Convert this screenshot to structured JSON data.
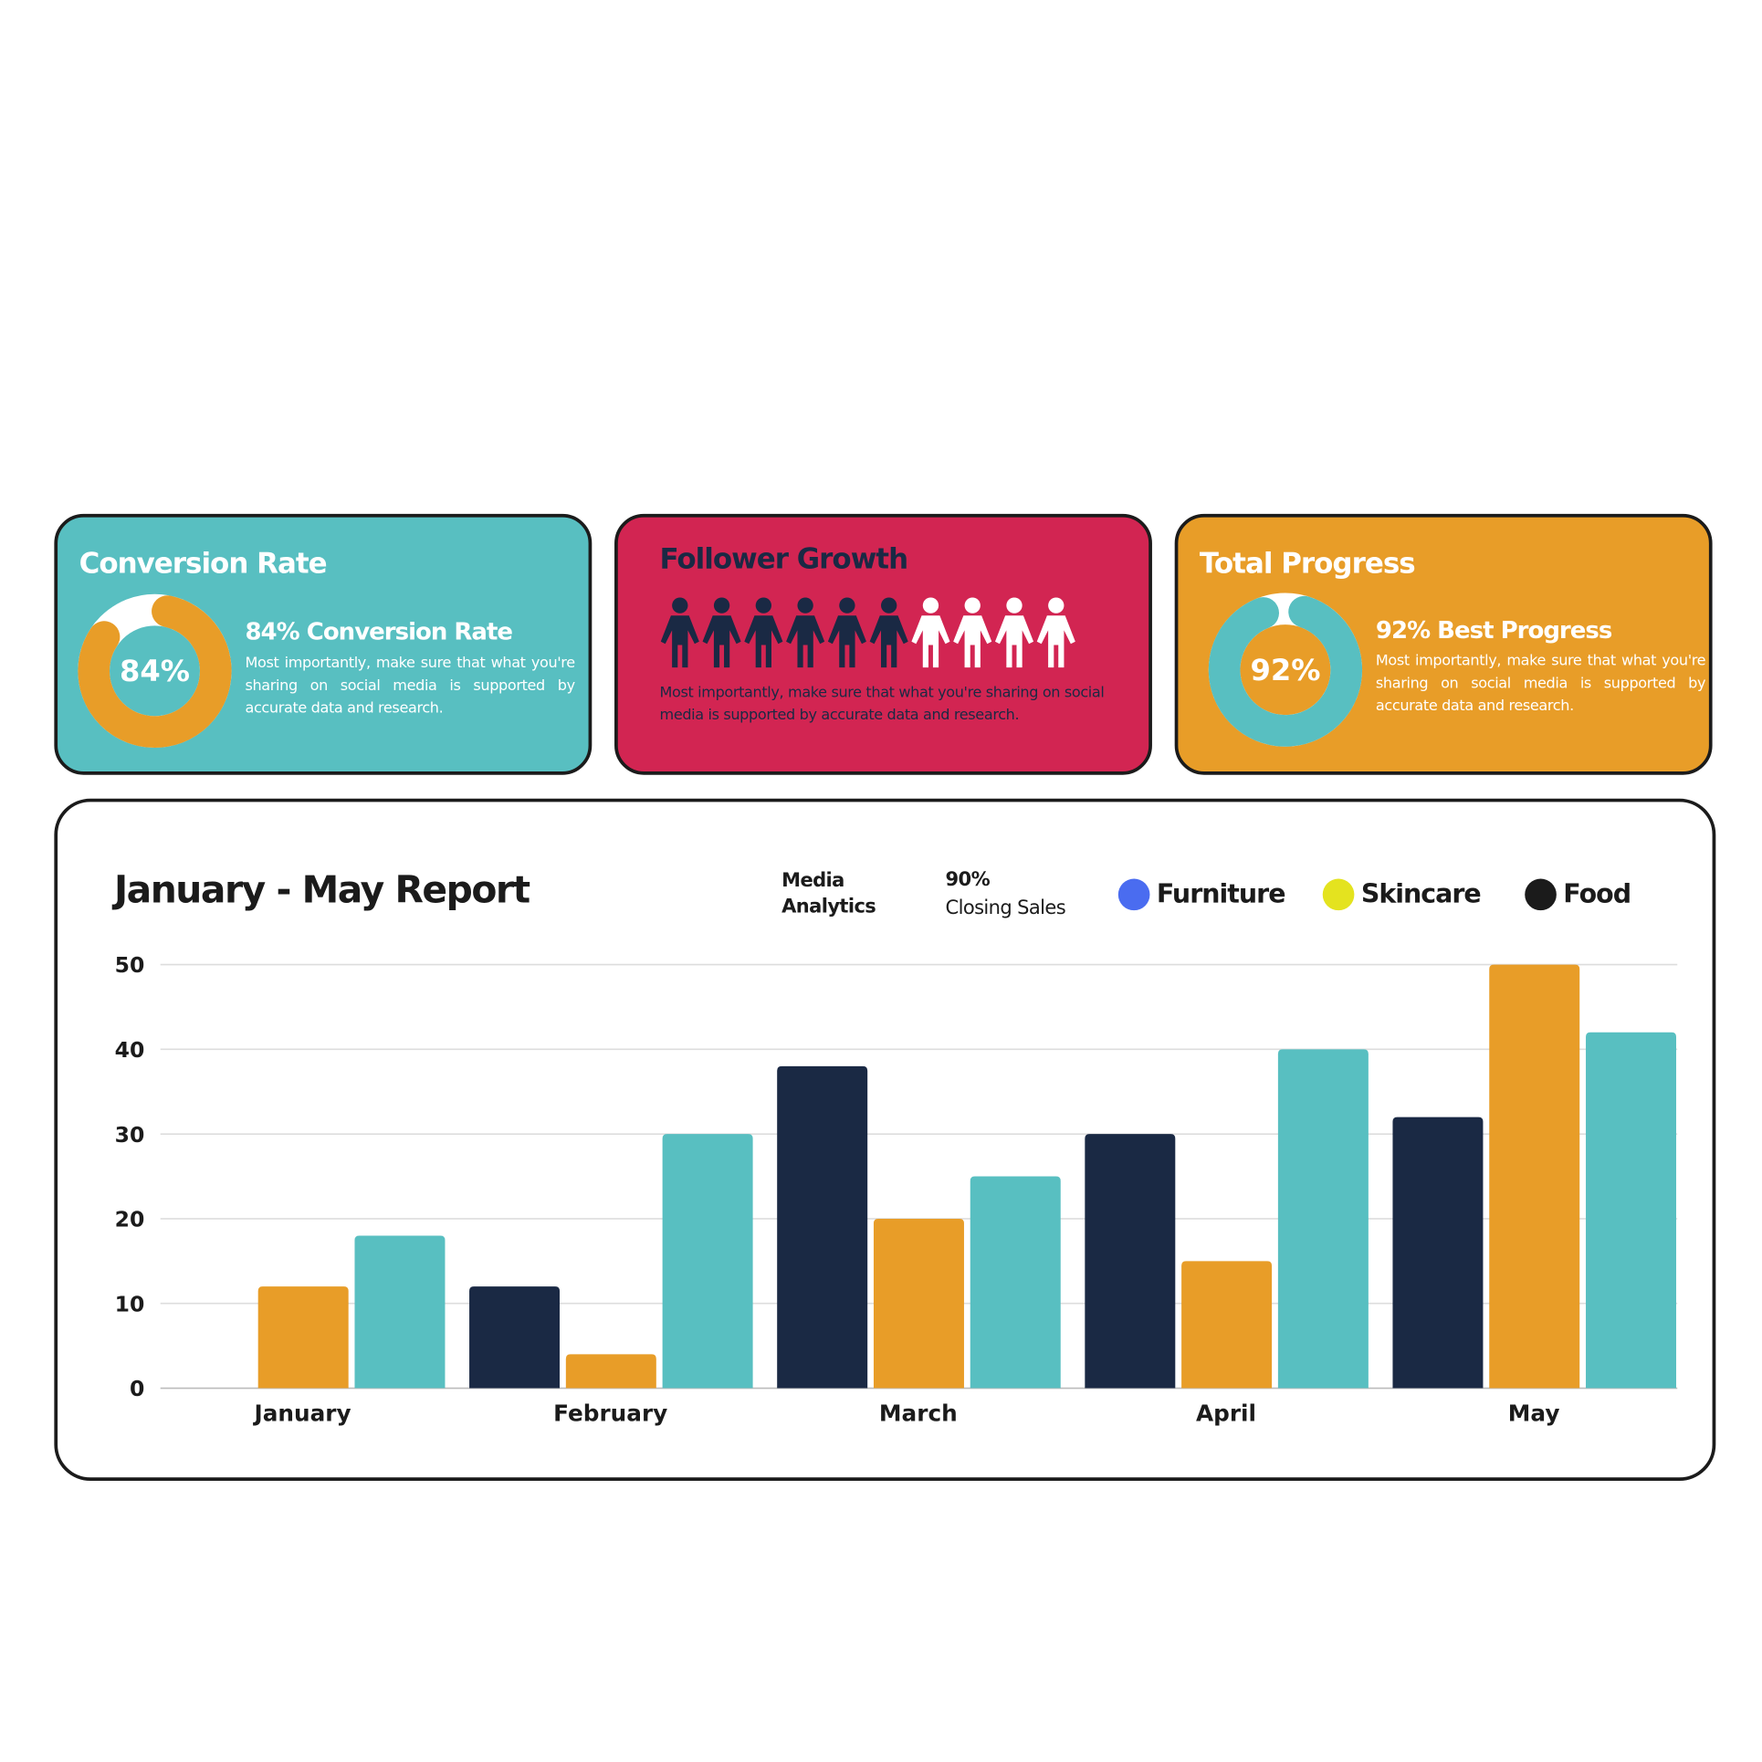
{
  "cards": {
    "conversion": {
      "title": "Conversion Rate",
      "donut_label": "84%",
      "value_percent": 84,
      "subtitle": "84% Conversion Rate",
      "description": "Most importantly, make sure that what you're sharing on social media is supported by accurate data and research.",
      "bg": "#58bfc1",
      "ring": "#e89d28"
    },
    "follower": {
      "title": "Follower Growth",
      "filled_people": 6,
      "total_people": 10,
      "description": "Most importantly, make sure that what you're sharing on social media is supported by accurate data and research.",
      "bg": "#d22552",
      "filled_color": "#1a2944"
    },
    "progress": {
      "title": "Total Progress",
      "donut_label": "92%",
      "value_percent": 92,
      "subtitle": "92% Best Progress",
      "description": "Most importantly, make sure that what you're sharing on social media is supported by accurate data and research.",
      "bg": "#e89d28",
      "ring": "#58bfc1"
    }
  },
  "report": {
    "media_analytics": "Media Analytics",
    "closing_value": "90%",
    "closing_label": "Closing Sales",
    "legend": [
      {
        "label": "Furniture",
        "color": "#4a6cf0"
      },
      {
        "label": "Skincare",
        "color": "#e4e31f"
      },
      {
        "label": "Food",
        "color": "#1b1b1b"
      }
    ]
  },
  "chart_data": {
    "type": "bar",
    "title": "January - May Report",
    "categories": [
      "January",
      "February",
      "March",
      "April",
      "May"
    ],
    "series": [
      {
        "values": [
          0,
          12,
          38,
          30,
          32
        ],
        "color": "#1a2944"
      },
      {
        "values": [
          12,
          4,
          20,
          15,
          50
        ],
        "color": "#e89d28"
      },
      {
        "values": [
          18,
          30,
          25,
          40,
          42
        ],
        "color": "#58bfc1"
      }
    ],
    "ylim": [
      0,
      50
    ],
    "yticks": [
      "0",
      "10",
      "20",
      "30",
      "40",
      "50"
    ],
    "grid": true
  }
}
